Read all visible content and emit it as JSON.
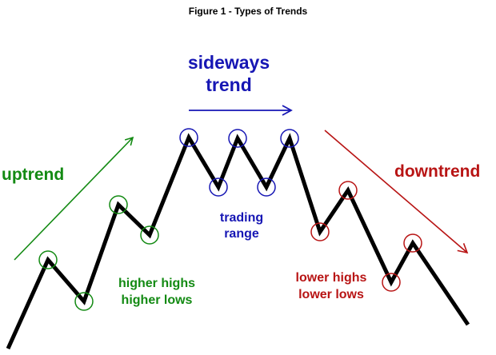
{
  "title": "Figure 1 - Types of Trends",
  "labels": {
    "uptrend": "uptrend",
    "sideways_line1": "sideways",
    "sideways_line2": "trend",
    "downtrend": "downtrend",
    "trading_line1": "trading",
    "trading_line2": "range",
    "higher_line1": "higher highs",
    "higher_line2": "higher lows",
    "lower_line1": "lower highs",
    "lower_line2": "lower lows"
  },
  "colors": {
    "price_line": "#000000",
    "uptrend": "#138a13",
    "sideways": "#1616b4",
    "downtrend": "#b81414"
  }
}
